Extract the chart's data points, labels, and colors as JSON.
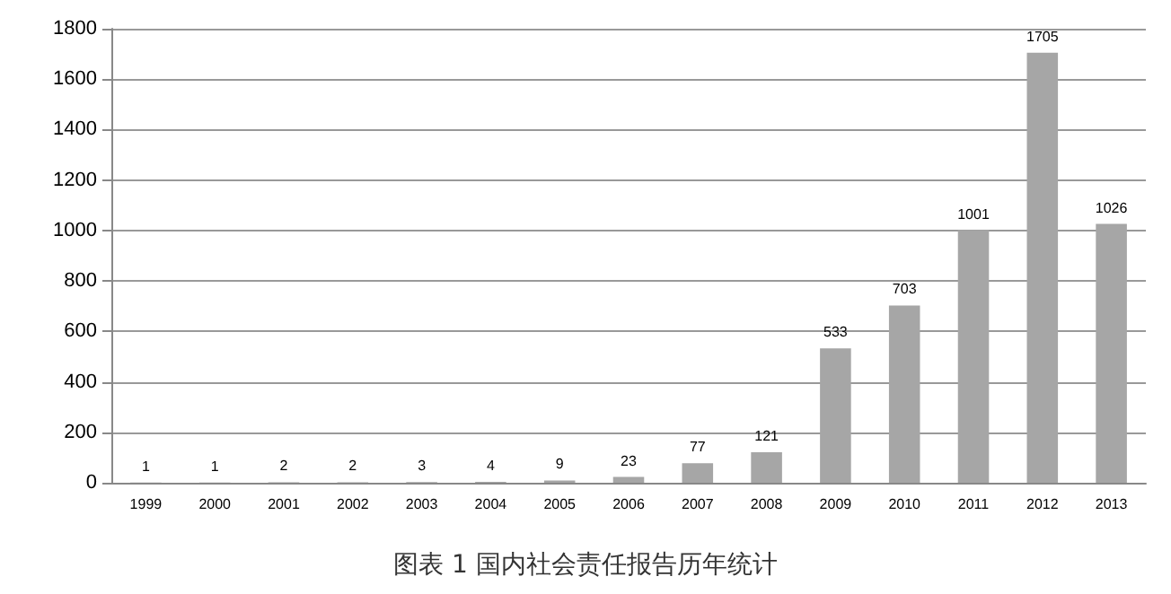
{
  "chart_data": {
    "type": "bar",
    "title": "图表 1 国内社会责任报告历年统计",
    "categories": [
      "1999",
      "2000",
      "2001",
      "2002",
      "2003",
      "2004",
      "2005",
      "2006",
      "2007",
      "2008",
      "2009",
      "2010",
      "2011",
      "2012",
      "2013"
    ],
    "values": [
      1,
      1,
      2,
      2,
      3,
      4,
      9,
      23,
      77,
      121,
      533,
      703,
      1001,
      1705,
      1026
    ],
    "color": "#a6a6a6",
    "ylim": [
      0,
      1800
    ],
    "yticks": [
      0,
      200,
      400,
      600,
      800,
      1000,
      1200,
      1400,
      1600,
      1800
    ],
    "grid": "y",
    "data_labels": true
  }
}
